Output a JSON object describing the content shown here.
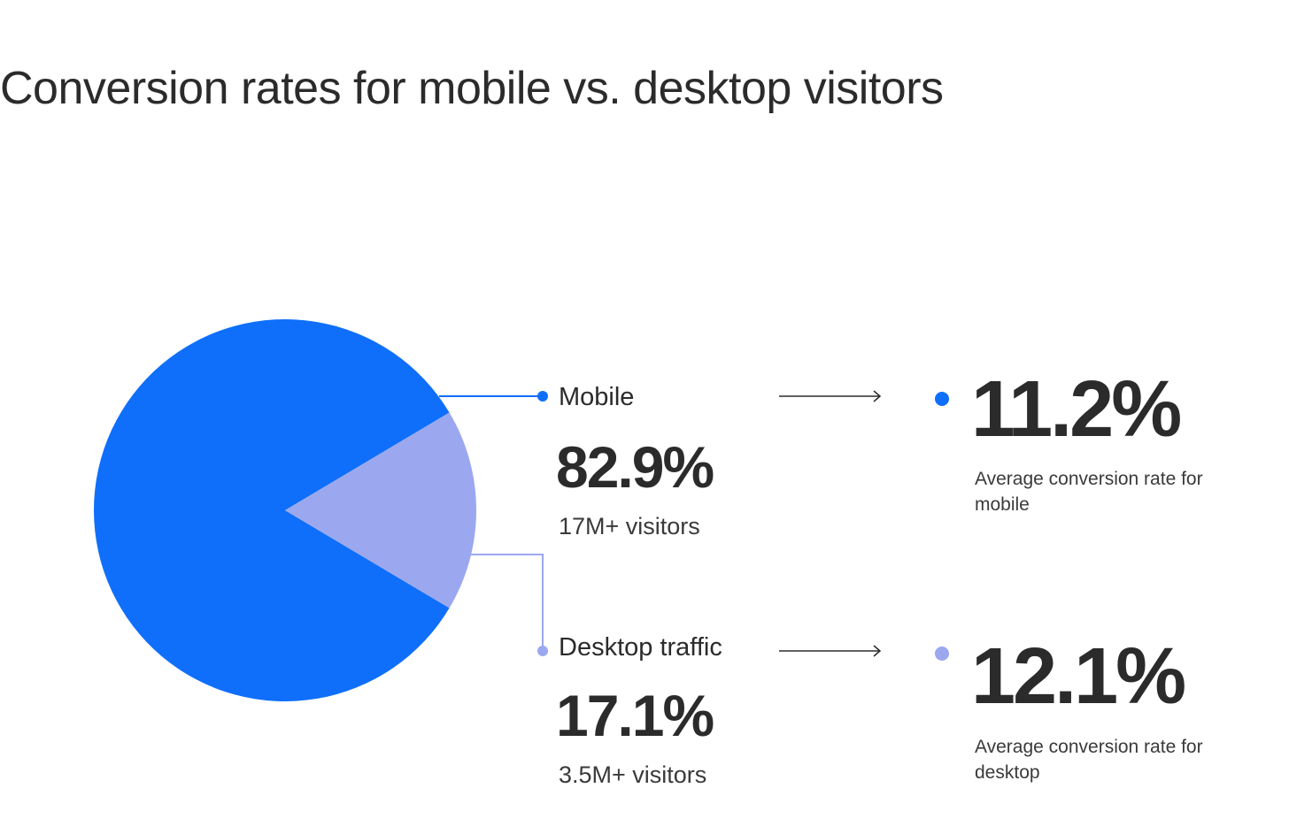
{
  "title": "Conversion rates for mobile vs. desktop visitors",
  "colors": {
    "mobile": "#0f6ffb",
    "desktop": "#9ba8f0",
    "text": "#2b2b2b"
  },
  "chart_data": {
    "type": "pie",
    "title": "Conversion rates for mobile vs. desktop visitors",
    "series": [
      {
        "name": "Mobile",
        "share_pct": 82.9,
        "share_label": "82.9%",
        "visitors_label": "17M+ visitors",
        "conversion_rate_pct": 11.2,
        "conversion_rate_label": "11.2%",
        "conversion_desc": "Average conversion rate for mobile",
        "color": "#0f6ffb"
      },
      {
        "name": "Desktop traffic",
        "share_pct": 17.1,
        "share_label": "17.1%",
        "visitors_label": "3.5M+ visitors",
        "conversion_rate_pct": 12.1,
        "conversion_rate_label": "12.1%",
        "conversion_desc": "Average conversion rate for desktop",
        "color": "#9ba8f0"
      }
    ]
  }
}
